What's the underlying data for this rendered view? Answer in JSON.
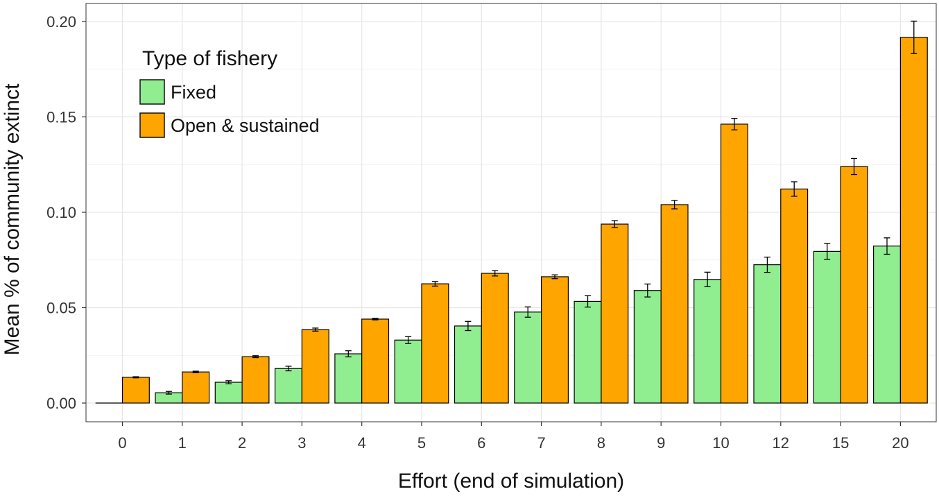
{
  "chart_data": {
    "type": "bar",
    "xlabel": "Effort (end of simulation)",
    "ylabel": "Mean % of community extinct",
    "ylim": [
      0,
      0.2
    ],
    "yticks": [
      "0.00",
      "0.05",
      "0.10",
      "0.15",
      "0.20"
    ],
    "ytick_values": [
      0,
      0.05,
      0.1,
      0.15,
      0.2
    ],
    "categories": [
      "0",
      "1",
      "2",
      "3",
      "4",
      "5",
      "6",
      "7",
      "8",
      "9",
      "10",
      "12",
      "15",
      "20"
    ],
    "grid": true,
    "legend": {
      "title": "Type of fishery",
      "placement": "top-left"
    },
    "series": [
      {
        "name": "Fixed",
        "color": "#90EE90",
        "values": [
          0.0,
          0.0054,
          0.0109,
          0.0181,
          0.0258,
          0.033,
          0.0404,
          0.0477,
          0.0533,
          0.059,
          0.0648,
          0.0725,
          0.0795,
          0.0823
        ],
        "errors": [
          0.0,
          0.0007,
          0.0008,
          0.0012,
          0.0016,
          0.0018,
          0.0024,
          0.0027,
          0.003,
          0.0034,
          0.0038,
          0.004,
          0.0042,
          0.0043
        ]
      },
      {
        "name": "Open & sustained",
        "color": "#FFA500",
        "values": [
          0.0135,
          0.0163,
          0.0243,
          0.0385,
          0.044,
          0.0625,
          0.068,
          0.0662,
          0.0938,
          0.104,
          0.1462,
          0.1122,
          0.124,
          0.1917
        ],
        "errors": [
          0.0003,
          0.0004,
          0.0005,
          0.0008,
          0.0004,
          0.0012,
          0.0014,
          0.001,
          0.0018,
          0.0022,
          0.003,
          0.0038,
          0.0042,
          0.0085
        ]
      }
    ]
  }
}
